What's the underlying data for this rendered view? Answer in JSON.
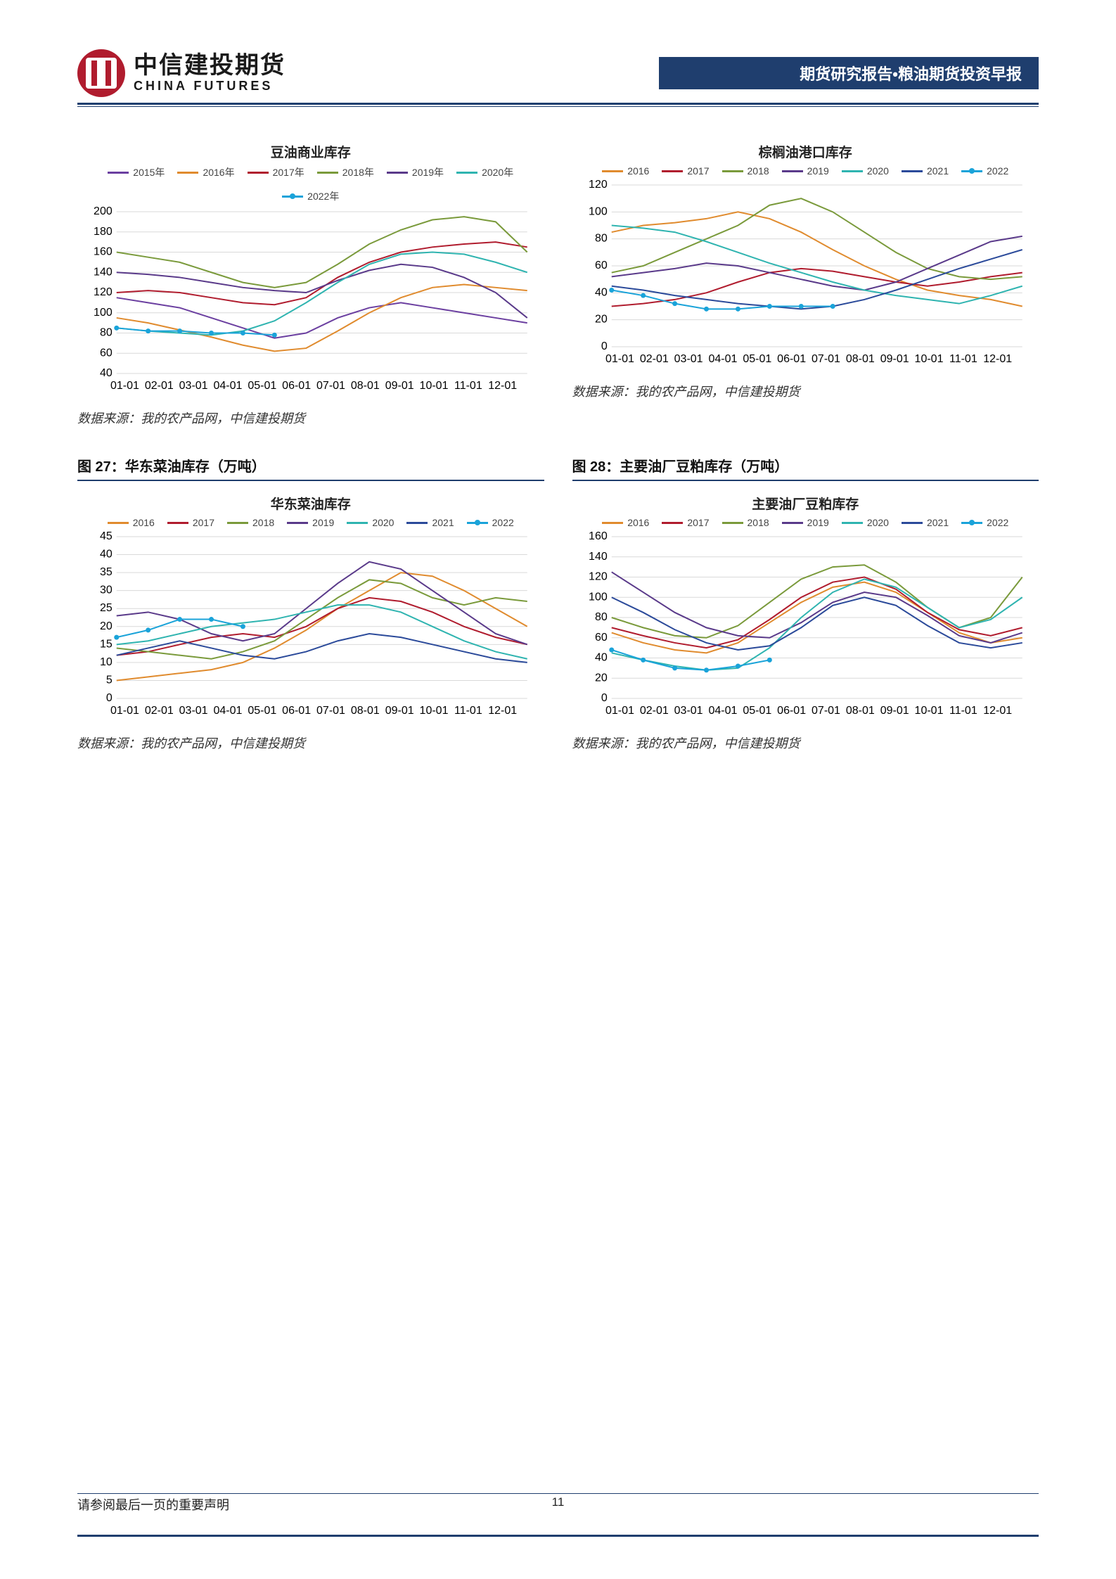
{
  "header": {
    "logo_cn": "中信建投期货",
    "logo_en": "CHINA FUTURES",
    "banner": "期货研究报告•粮油期货投资早报"
  },
  "colors": {
    "2015": "#6b3fa0",
    "2016": "#e08b2e",
    "2017": "#b01c2e",
    "2018": "#7a9a3b",
    "2019": "#5a3a8a",
    "2020": "#2fb4b0",
    "2021": "#2b4a9a",
    "2022": "#1aa3d9"
  },
  "months": [
    "01-01",
    "02-01",
    "03-01",
    "04-01",
    "05-01",
    "06-01",
    "07-01",
    "08-01",
    "09-01",
    "10-01",
    "11-01",
    "12-01"
  ],
  "charts": {
    "c1": {
      "title": "豆油商业库存",
      "legend_years": [
        "2015年",
        "2016年",
        "2017年",
        "2018年",
        "2019年",
        "2020年",
        "2022年"
      ],
      "legend_colors": [
        "#6b3fa0",
        "#e08b2e",
        "#b01c2e",
        "#7a9a3b",
        "#5a3a8a",
        "#2fb4b0",
        "#1aa3d9"
      ],
      "marker_series": "2022年",
      "ylim": [
        40,
        200
      ],
      "ytick_step": 20,
      "series": {
        "2015年": [
          115,
          110,
          105,
          95,
          85,
          75,
          80,
          95,
          105,
          110,
          105,
          100,
          95,
          90
        ],
        "2016年": [
          95,
          90,
          83,
          76,
          68,
          62,
          65,
          82,
          100,
          115,
          125,
          128,
          125,
          122
        ],
        "2017年": [
          120,
          122,
          120,
          115,
          110,
          108,
          115,
          135,
          150,
          160,
          165,
          168,
          170,
          165
        ],
        "2018年": [
          160,
          155,
          150,
          140,
          130,
          125,
          130,
          148,
          168,
          182,
          192,
          195,
          190,
          160
        ],
        "2019年": [
          140,
          138,
          135,
          130,
          125,
          122,
          120,
          132,
          142,
          148,
          145,
          135,
          120,
          95
        ],
        "2020年": [
          85,
          82,
          80,
          78,
          82,
          92,
          110,
          130,
          148,
          158,
          160,
          158,
          150,
          140
        ],
        "2022年": [
          85,
          82,
          82,
          80,
          80,
          78,
          null,
          null,
          null,
          null,
          null,
          null,
          null,
          null
        ]
      },
      "source": "数据来源：我的农产品网，中信建投期货"
    },
    "c2": {
      "title": "棕榈油港口库存",
      "legend_years": [
        "2016",
        "2017",
        "2018",
        "2019",
        "2020",
        "2021",
        "2022"
      ],
      "legend_colors": [
        "#e08b2e",
        "#b01c2e",
        "#7a9a3b",
        "#5a3a8a",
        "#2fb4b0",
        "#2b4a9a",
        "#1aa3d9"
      ],
      "marker_series": "2022",
      "ylim": [
        0,
        120
      ],
      "ytick_step": 20,
      "series": {
        "2016": [
          85,
          90,
          92,
          95,
          100,
          95,
          85,
          72,
          60,
          50,
          42,
          38,
          35,
          30
        ],
        "2017": [
          30,
          32,
          35,
          40,
          48,
          55,
          58,
          56,
          52,
          48,
          45,
          48,
          52,
          55
        ],
        "2018": [
          55,
          60,
          70,
          80,
          90,
          105,
          110,
          100,
          85,
          70,
          58,
          52,
          50,
          52
        ],
        "2019": [
          52,
          55,
          58,
          62,
          60,
          55,
          50,
          45,
          42,
          48,
          58,
          68,
          78,
          82
        ],
        "2020": [
          90,
          88,
          85,
          78,
          70,
          62,
          55,
          48,
          42,
          38,
          35,
          32,
          38,
          45
        ],
        "2021": [
          45,
          42,
          38,
          35,
          32,
          30,
          28,
          30,
          35,
          42,
          50,
          58,
          65,
          72
        ],
        "2022": [
          42,
          38,
          32,
          28,
          28,
          30,
          30,
          30,
          null,
          null,
          null,
          null,
          null,
          null
        ]
      },
      "source": "数据来源：我的农产品网，中信建投期货"
    },
    "c3": {
      "title": "华东菜油库存",
      "caption": "图 27：华东菜油库存（万吨）",
      "legend_years": [
        "2016",
        "2017",
        "2018",
        "2019",
        "2020",
        "2021",
        "2022"
      ],
      "legend_colors": [
        "#e08b2e",
        "#b01c2e",
        "#7a9a3b",
        "#5a3a8a",
        "#2fb4b0",
        "#2b4a9a",
        "#1aa3d9"
      ],
      "marker_series": "2022",
      "ylim": [
        0,
        45
      ],
      "ytick_step": 5,
      "series": {
        "2016": [
          5,
          6,
          7,
          8,
          10,
          14,
          19,
          25,
          30,
          35,
          34,
          30,
          25,
          20
        ],
        "2017": [
          12,
          13,
          15,
          17,
          18,
          17,
          20,
          25,
          28,
          27,
          24,
          20,
          17,
          15
        ],
        "2018": [
          14,
          13,
          12,
          11,
          13,
          16,
          22,
          28,
          33,
          32,
          28,
          26,
          28,
          27
        ],
        "2019": [
          23,
          24,
          22,
          18,
          16,
          18,
          25,
          32,
          38,
          36,
          30,
          24,
          18,
          15
        ],
        "2020": [
          15,
          16,
          18,
          20,
          21,
          22,
          24,
          26,
          26,
          24,
          20,
          16,
          13,
          11
        ],
        "2021": [
          12,
          14,
          16,
          14,
          12,
          11,
          13,
          16,
          18,
          17,
          15,
          13,
          11,
          10
        ],
        "2022": [
          17,
          19,
          22,
          22,
          20,
          null,
          null,
          null,
          null,
          null,
          null,
          null,
          null,
          null
        ]
      },
      "source": "数据来源：我的农产品网，中信建投期货"
    },
    "c4": {
      "title": "主要油厂豆粕库存",
      "caption": "图 28：主要油厂豆粕库存（万吨）",
      "legend_years": [
        "2016",
        "2017",
        "2018",
        "2019",
        "2020",
        "2021",
        "2022"
      ],
      "legend_colors": [
        "#e08b2e",
        "#b01c2e",
        "#7a9a3b",
        "#5a3a8a",
        "#2fb4b0",
        "#2b4a9a",
        "#1aa3d9"
      ],
      "marker_series": "2022",
      "ylim": [
        0,
        160
      ],
      "ytick_step": 20,
      "series": {
        "2016": [
          65,
          55,
          48,
          45,
          55,
          75,
          95,
          110,
          115,
          105,
          85,
          65,
          55,
          60
        ],
        "2017": [
          70,
          62,
          55,
          50,
          58,
          78,
          100,
          115,
          120,
          108,
          85,
          68,
          62,
          70
        ],
        "2018": [
          80,
          70,
          62,
          60,
          72,
          95,
          118,
          130,
          132,
          115,
          90,
          70,
          80,
          120
        ],
        "2019": [
          125,
          105,
          85,
          70,
          62,
          60,
          75,
          95,
          105,
          100,
          82,
          62,
          55,
          65
        ],
        "2020": [
          45,
          38,
          32,
          28,
          30,
          50,
          80,
          105,
          118,
          110,
          90,
          70,
          78,
          100
        ],
        "2021": [
          100,
          85,
          68,
          55,
          48,
          52,
          70,
          92,
          100,
          92,
          72,
          55,
          50,
          55
        ],
        "2022": [
          48,
          38,
          30,
          28,
          32,
          38,
          null,
          null,
          null,
          null,
          null,
          null,
          null,
          null
        ]
      },
      "source": "数据来源：我的农产品网，中信建投期货"
    }
  },
  "footer": {
    "disclaimer": "请参阅最后一页的重要声明",
    "page": "11"
  }
}
